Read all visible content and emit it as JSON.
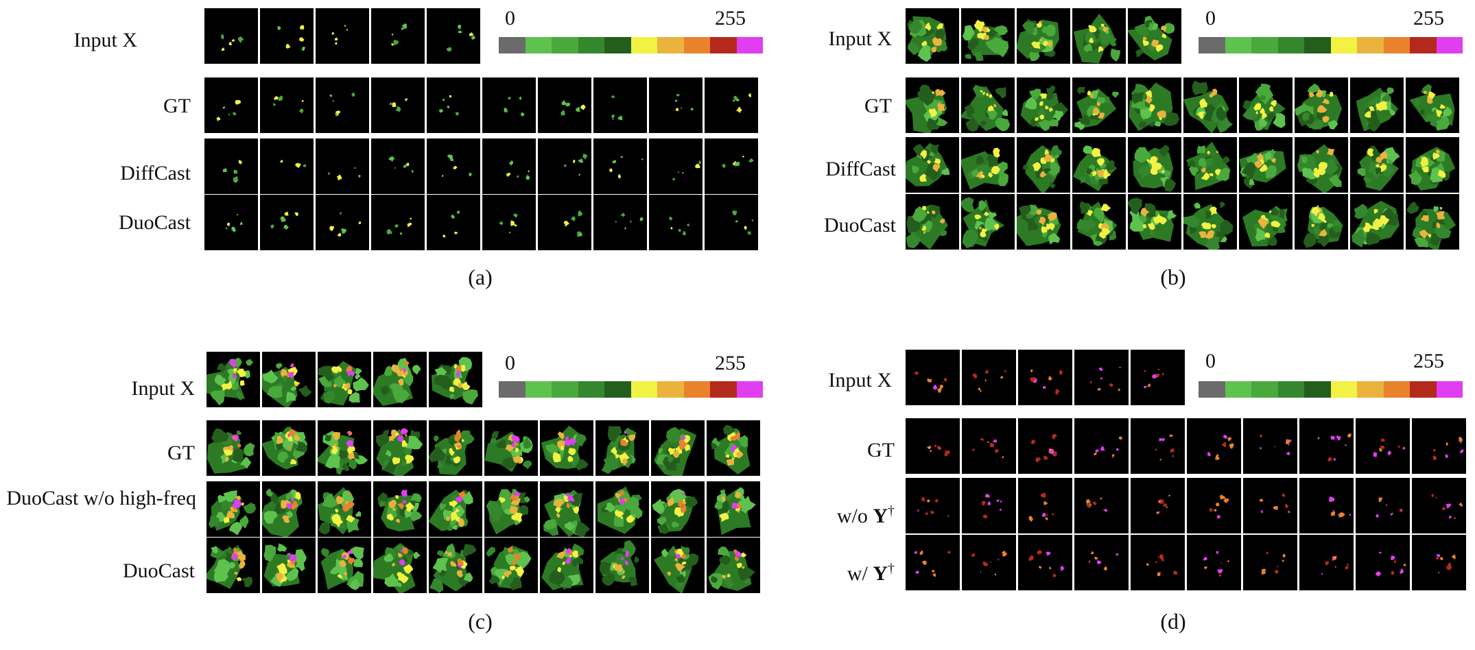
{
  "colorbar": {
    "min_label": "0",
    "max_label": "255",
    "colors": [
      "#6b6b6b",
      "#5ec24f",
      "#4aa93c",
      "#35872d",
      "#245e1d",
      "#f2f244",
      "#e9b33e",
      "#e8822d",
      "#b32a1c",
      "#e03ef0"
    ]
  },
  "panels": [
    {
      "caption": "(a)",
      "style": "sparse-green",
      "rows": [
        {
          "label": "Input X",
          "frames": 5
        },
        {
          "label": "GT",
          "frames": 10
        },
        {
          "label": "DiffCast",
          "frames": 10
        },
        {
          "label": "DuoCast",
          "frames": 10
        }
      ]
    },
    {
      "caption": "(b)",
      "style": "dense-yellow",
      "rows": [
        {
          "label": "Input X",
          "frames": 5
        },
        {
          "label": "GT",
          "frames": 10
        },
        {
          "label": "DiffCast",
          "frames": 10
        },
        {
          "label": "DuoCast",
          "frames": 10
        }
      ]
    },
    {
      "caption": "(c)",
      "style": "dense-magenta",
      "rows": [
        {
          "label": "Input X",
          "frames": 5
        },
        {
          "label": "GT",
          "frames": 10
        },
        {
          "label": "DuoCast w/o high-freq",
          "frames": 10
        },
        {
          "label": "DuoCast",
          "frames": 10
        }
      ]
    },
    {
      "caption": "(d)",
      "style": "sparse-red",
      "rows": [
        {
          "label": "Input X",
          "frames": 5
        },
        {
          "label": "GT",
          "frames": 10
        },
        {
          "label_prefix": "w/o ",
          "label_sym": "Y",
          "label_sup": "†",
          "frames": 10
        },
        {
          "label_prefix": "w/ ",
          "label_sym": "Y",
          "label_sup": "†",
          "frames": 10
        }
      ]
    }
  ]
}
